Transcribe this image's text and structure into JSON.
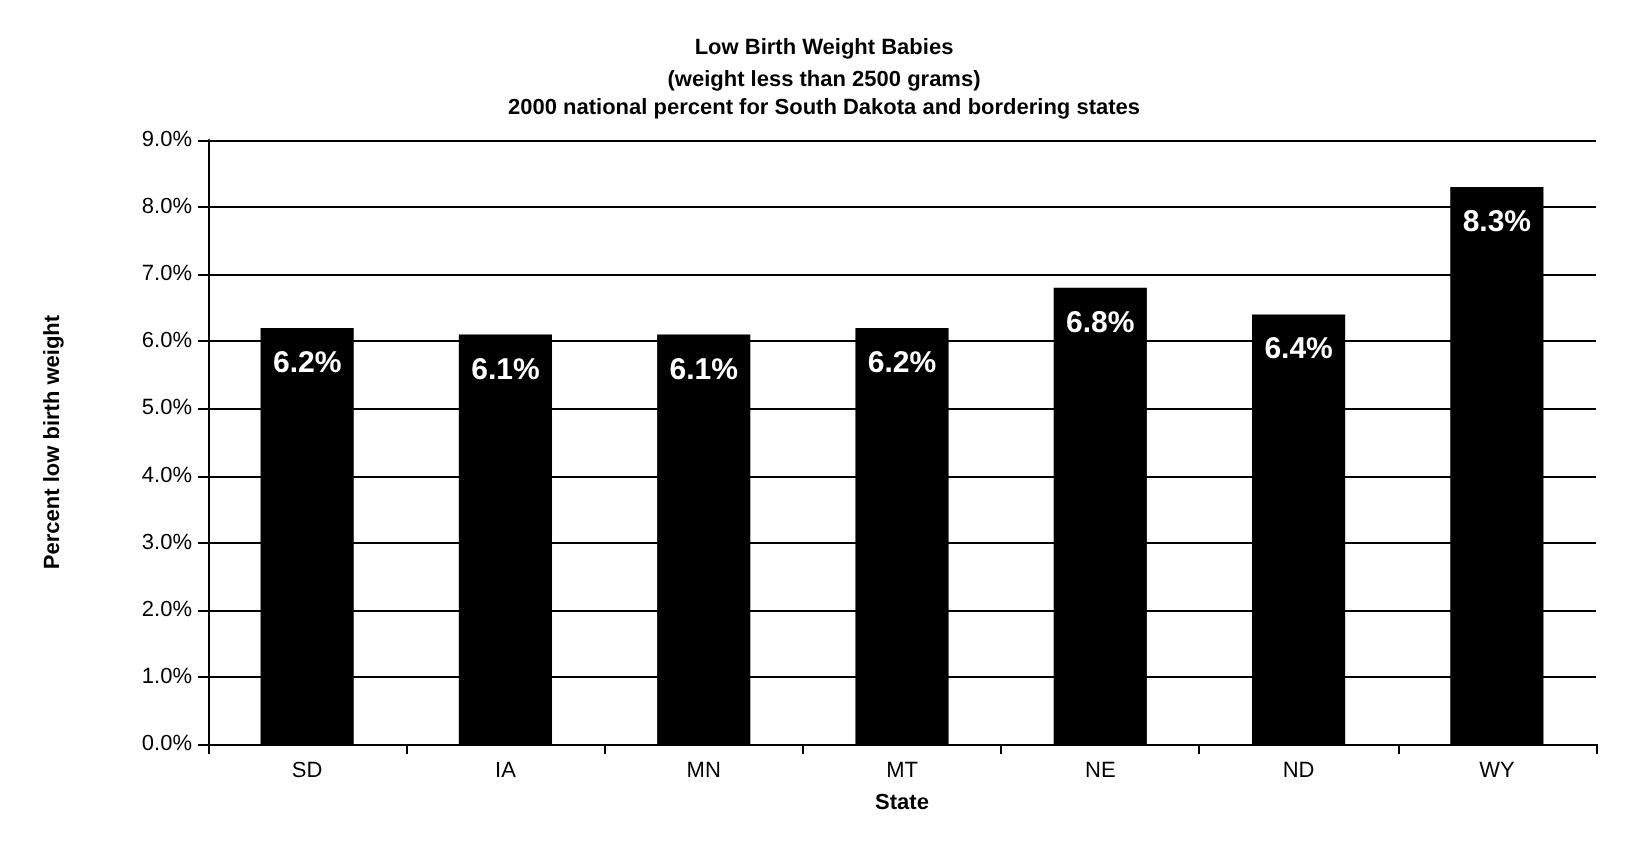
{
  "chart_data": {
    "type": "bar",
    "title": "Low Birth Weight Babies",
    "subtitle": "(weight less than 2500 grams)\n2000 national percent for South Dakota and bordering states",
    "xlabel": "State",
    "ylabel": "Percent low birth weight",
    "categories": [
      "SD",
      "IA",
      "MN",
      "MT",
      "NE",
      "ND",
      "WY"
    ],
    "values": [
      6.2,
      6.1,
      6.1,
      6.2,
      6.8,
      6.4,
      8.3
    ],
    "value_labels": [
      "6.2%",
      "6.1%",
      "6.1%",
      "6.2%",
      "6.8%",
      "6.4%",
      "8.3%"
    ],
    "color": "#000000",
    "ylim": [
      0,
      9
    ],
    "yticks": [
      {
        "value": 0,
        "label": "0.0%"
      },
      {
        "value": 1,
        "label": "1.0%"
      },
      {
        "value": 2,
        "label": "2.0%"
      },
      {
        "value": 3,
        "label": "3.0%"
      },
      {
        "value": 4,
        "label": "4.0%"
      },
      {
        "value": 5,
        "label": "5.0%"
      },
      {
        "value": 6,
        "label": "6.0%"
      },
      {
        "value": 7,
        "label": "7.0%"
      },
      {
        "value": 8,
        "label": "8.0%"
      },
      {
        "value": 9,
        "label": "9.0%"
      }
    ],
    "grid": true
  }
}
